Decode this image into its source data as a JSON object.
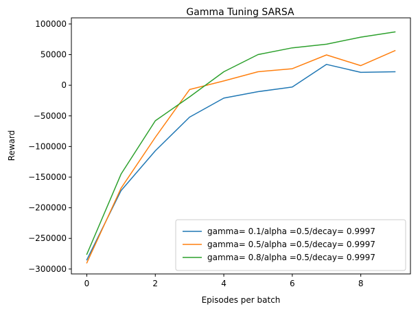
{
  "chart_data": {
    "type": "line",
    "title": "Gamma Tuning SARSA",
    "xlabel": "Episodes per batch",
    "ylabel": "Reward",
    "xlim": [
      -0.45,
      9.45
    ],
    "ylim": [
      -308000,
      110000
    ],
    "xticks": [
      0,
      2,
      4,
      6,
      8
    ],
    "yticks": [
      -300000,
      -250000,
      -200000,
      -150000,
      -100000,
      -50000,
      0,
      50000,
      100000
    ],
    "grid": false,
    "legend_position": "lower-right",
    "x": [
      0,
      1,
      2,
      3,
      4,
      5,
      6,
      7,
      8,
      9
    ],
    "series": [
      {
        "name": "gamma= 0.1/alpha =0.5/decay= 0.9997",
        "color": "#1f77b4",
        "values": [
          -285000,
          -172000,
          -107000,
          -52000,
          -21000,
          -10500,
          -3000,
          34000,
          21000,
          22000
        ]
      },
      {
        "name": "gamma= 0.5/alpha =0.5/decay= 0.9997",
        "color": "#ff7f0e",
        "values": [
          -290000,
          -168000,
          -85000,
          -7000,
          7000,
          22000,
          27000,
          49500,
          32000,
          56500
        ]
      },
      {
        "name": "gamma= 0.8/alpha =0.5/decay= 0.9997",
        "color": "#2ca02c",
        "values": [
          -276000,
          -145000,
          -58000,
          -19000,
          22000,
          50000,
          61000,
          67000,
          78500,
          87000
        ]
      }
    ]
  }
}
